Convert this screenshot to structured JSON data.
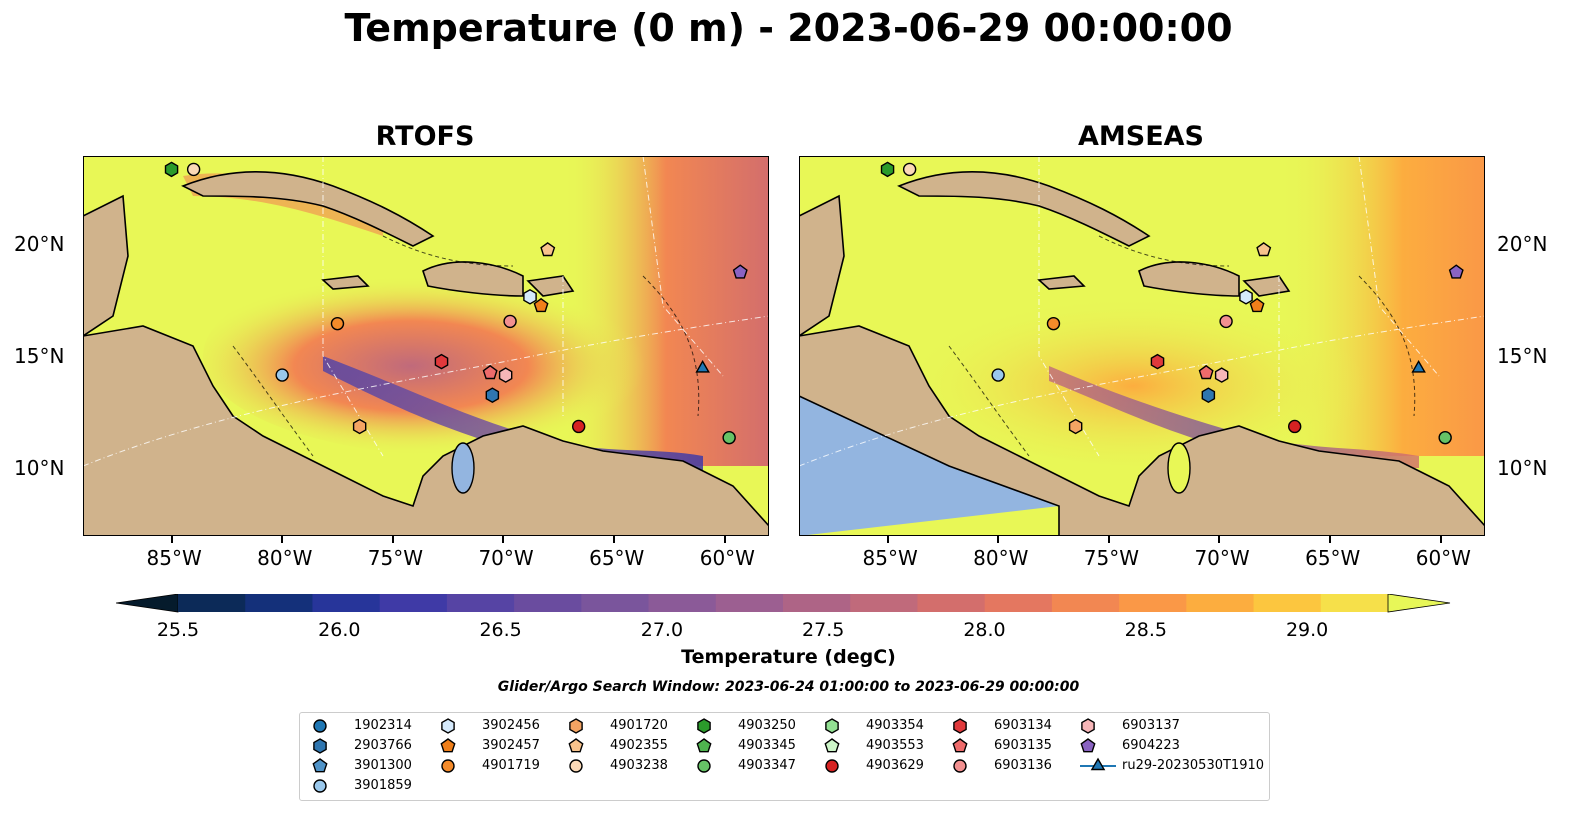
{
  "title": "Temperature (0 m) - 2023-06-29 00:00:00",
  "panels": [
    {
      "title": "RTOFS"
    },
    {
      "title": "AMSEAS"
    }
  ],
  "axes": {
    "x_ticks": [
      "85°W",
      "80°W",
      "75°W",
      "70°W",
      "65°W",
      "60°W"
    ],
    "y_ticks": [
      "20°N",
      "15°N",
      "10°N"
    ]
  },
  "colorbar": {
    "label": "Temperature (degC)",
    "ticks": [
      "25.5",
      "26.0",
      "26.5",
      "27.0",
      "27.5",
      "28.0",
      "28.5",
      "29.0"
    ],
    "colors": [
      "#051b2c",
      "#0c2a58",
      "#14307a",
      "#27359a",
      "#3f3aa6",
      "#5644a4",
      "#6a4c9f",
      "#7a559c",
      "#8b5a98",
      "#9c5f91",
      "#ae6486",
      "#c06a7b",
      "#d36e6c",
      "#e47760",
      "#f28752",
      "#fa9847",
      "#fcad3f",
      "#fcc63f",
      "#f6e04a",
      "#e7f758"
    ]
  },
  "search_window": "Glider/Argo Search Window: 2023-06-24 01:00:00 to 2023-06-29 00:00:00",
  "colors": {
    "land": "#d0b38c",
    "ocean_warm": "#e8f756",
    "pacific_water": "#93b5e0",
    "lake": "#93b5e0"
  },
  "legend": [
    {
      "id": "1902314",
      "marker": "circle",
      "color": "#1f77b4"
    },
    {
      "id": "2903766",
      "marker": "hexagon",
      "color": "#2f76b0"
    },
    {
      "id": "3901300",
      "marker": "pentagon",
      "color": "#4f93c8"
    },
    {
      "id": "3901859",
      "marker": "circle",
      "color": "#9ac8ec"
    },
    {
      "id": "3902456",
      "marker": "hexagon",
      "color": "#d5eafc"
    },
    {
      "id": "3902457",
      "marker": "pentagon",
      "color": "#f07f1a"
    },
    {
      "id": "4901719",
      "marker": "circle",
      "color": "#f58b2a"
    },
    {
      "id": "4901720",
      "marker": "hexagon",
      "color": "#f4a463"
    },
    {
      "id": "4902355",
      "marker": "pentagon",
      "color": "#f8c38c"
    },
    {
      "id": "4903238",
      "marker": "circle",
      "color": "#fbd9b7"
    },
    {
      "id": "4903250",
      "marker": "hexagon",
      "color": "#2b9b2b"
    },
    {
      "id": "4903345",
      "marker": "pentagon",
      "color": "#4fb44f"
    },
    {
      "id": "4903347",
      "marker": "circle",
      "color": "#66c266"
    },
    {
      "id": "4903354",
      "marker": "hexagon",
      "color": "#93e093"
    },
    {
      "id": "4903553",
      "marker": "pentagon",
      "color": "#cdf5c8"
    },
    {
      "id": "4903629",
      "marker": "circle",
      "color": "#d62222"
    },
    {
      "id": "6903134",
      "marker": "hexagon",
      "color": "#e0393c"
    },
    {
      "id": "6903135",
      "marker": "pentagon",
      "color": "#ee6b6b"
    },
    {
      "id": "6903136",
      "marker": "circle",
      "color": "#f29090"
    },
    {
      "id": "6903137",
      "marker": "hexagon",
      "color": "#f7b6b8"
    },
    {
      "id": "6904223",
      "marker": "pentagon",
      "color": "#8a63c2"
    },
    {
      "id": "ru29-20230530T1910",
      "marker": "triangle-line",
      "color": "#1f77b4"
    }
  ],
  "map_extent": {
    "lon": [
      -89,
      -58
    ],
    "lat": [
      7,
      24
    ]
  },
  "platforms": [
    {
      "id": "4903250",
      "lon": -85.0,
      "lat": 23.4
    },
    {
      "id": "4903238",
      "lon": -84.0,
      "lat": 23.4
    },
    {
      "id": "4902355",
      "lon": -68.0,
      "lat": 19.8
    },
    {
      "id": "6904223",
      "lon": -59.3,
      "lat": 18.8
    },
    {
      "id": "3902456",
      "lon": -68.8,
      "lat": 17.7
    },
    {
      "id": "3902457",
      "lon": -68.3,
      "lat": 17.3
    },
    {
      "id": "4901719",
      "lon": -77.5,
      "lat": 16.5
    },
    {
      "id": "6903136",
      "lon": -69.7,
      "lat": 16.6
    },
    {
      "id": "6903134",
      "lon": -72.8,
      "lat": 14.8
    },
    {
      "id": "6903135",
      "lon": -70.6,
      "lat": 14.3
    },
    {
      "id": "6903137",
      "lon": -69.9,
      "lat": 14.2
    },
    {
      "id": "3901859",
      "lon": -80.0,
      "lat": 14.2
    },
    {
      "id": "2903766",
      "lon": -70.5,
      "lat": 13.3
    },
    {
      "id": "4901720",
      "lon": -76.5,
      "lat": 11.9
    },
    {
      "id": "4903629",
      "lon": -66.6,
      "lat": 11.9
    },
    {
      "id": "4903347",
      "lon": -59.8,
      "lat": 11.4
    },
    {
      "id": "ru29-20230530T1910",
      "lon": -61.0,
      "lat": 14.5
    }
  ]
}
